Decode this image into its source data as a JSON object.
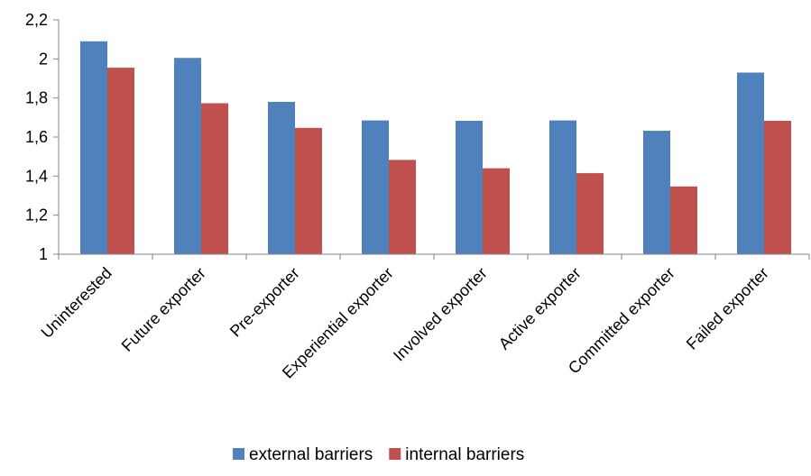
{
  "chart_data": {
    "type": "bar",
    "title": "",
    "xlabel": "",
    "ylabel": "",
    "categories": [
      "Uninterested",
      "Future exporter",
      "Pre-exporter",
      "Experiential exporter",
      "Involved exporter",
      "Active exporter",
      "Committed exporter",
      "Failed exporter"
    ],
    "series": [
      {
        "name": "external barriers",
        "color": "#4f81bd",
        "values": [
          2.09,
          2.005,
          1.78,
          1.685,
          1.683,
          1.685,
          1.632,
          1.93
        ]
      },
      {
        "name": "internal barriers",
        "color": "#c0504d",
        "values": [
          1.955,
          1.773,
          1.647,
          1.483,
          1.44,
          1.415,
          1.347,
          1.683
        ]
      }
    ],
    "ylim": [
      1,
      2.2
    ],
    "yticks": [
      1,
      1.2,
      1.4,
      1.6,
      1.8,
      2,
      2.2
    ],
    "ytick_labels": [
      "1",
      "1,2",
      "1,4",
      "1,6",
      "1,8",
      "2",
      "2,2"
    ],
    "grid": false,
    "legend_position": "bottom"
  }
}
